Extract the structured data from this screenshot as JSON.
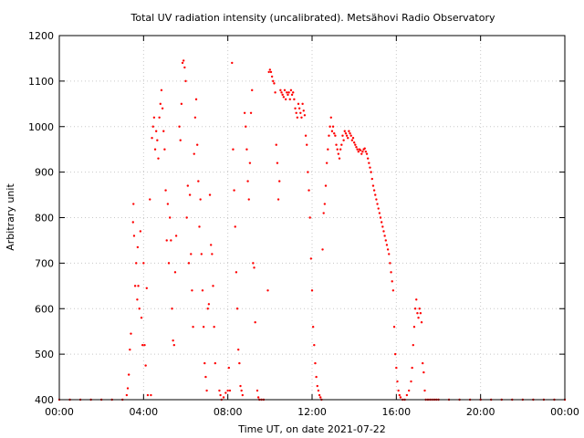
{
  "chart_data": {
    "type": "scatter",
    "title": "Total UV radiation intensity (uncalibrated). Metsähovi Radio Observatory",
    "xlabel": "Time UT, on date 2021-07-22",
    "ylabel": "Arbitrary unit",
    "xlim": [
      0,
      24
    ],
    "ylim": [
      400,
      1200
    ],
    "x_ticks": [
      {
        "value": 0,
        "label": "00:00"
      },
      {
        "value": 4,
        "label": "04:00"
      },
      {
        "value": 8,
        "label": "08:00"
      },
      {
        "value": 12,
        "label": "12:00"
      },
      {
        "value": 16,
        "label": "16:00"
      },
      {
        "value": 20,
        "label": "20:00"
      },
      {
        "value": 24,
        "label": "00:00"
      }
    ],
    "y_ticks": [
      400,
      500,
      600,
      700,
      800,
      900,
      1000,
      1100,
      1200
    ],
    "grid": true,
    "grid_style": "dotted",
    "legend": "none",
    "series": [
      {
        "color": "#ff0000",
        "points": [
          [
            0.0,
            400
          ],
          [
            0.5,
            400
          ],
          [
            1.0,
            400
          ],
          [
            1.5,
            400
          ],
          [
            2.0,
            400
          ],
          [
            2.5,
            400
          ],
          [
            3.0,
            400
          ],
          [
            3.2,
            410
          ],
          [
            3.25,
            425
          ],
          [
            3.3,
            455
          ],
          [
            3.35,
            510
          ],
          [
            3.4,
            545
          ],
          [
            3.5,
            790
          ],
          [
            3.52,
            830
          ],
          [
            3.55,
            760
          ],
          [
            3.6,
            650
          ],
          [
            3.65,
            700
          ],
          [
            3.7,
            620
          ],
          [
            3.72,
            735
          ],
          [
            3.75,
            650
          ],
          [
            3.8,
            600
          ],
          [
            3.85,
            770
          ],
          [
            3.9,
            580
          ],
          [
            3.95,
            520
          ],
          [
            4.0,
            700
          ],
          [
            4.05,
            520
          ],
          [
            4.1,
            475
          ],
          [
            4.15,
            645
          ],
          [
            4.2,
            410
          ],
          [
            4.3,
            840
          ],
          [
            4.35,
            410
          ],
          [
            4.4,
            975
          ],
          [
            4.45,
            1000
          ],
          [
            4.5,
            1020
          ],
          [
            4.55,
            950
          ],
          [
            4.6,
            990
          ],
          [
            4.65,
            970
          ],
          [
            4.7,
            930
          ],
          [
            4.75,
            1020
          ],
          [
            4.8,
            1050
          ],
          [
            4.85,
            1080
          ],
          [
            4.9,
            1040
          ],
          [
            4.95,
            990
          ],
          [
            5.0,
            950
          ],
          [
            5.05,
            860
          ],
          [
            5.1,
            750
          ],
          [
            5.15,
            830
          ],
          [
            5.2,
            700
          ],
          [
            5.25,
            800
          ],
          [
            5.3,
            750
          ],
          [
            5.35,
            600
          ],
          [
            5.4,
            530
          ],
          [
            5.45,
            520
          ],
          [
            5.5,
            680
          ],
          [
            5.55,
            760
          ],
          [
            5.7,
            1000
          ],
          [
            5.75,
            970
          ],
          [
            5.8,
            1050
          ],
          [
            5.85,
            1140
          ],
          [
            5.9,
            1145
          ],
          [
            5.95,
            1130
          ],
          [
            6.0,
            1100
          ],
          [
            6.05,
            800
          ],
          [
            6.1,
            870
          ],
          [
            6.15,
            700
          ],
          [
            6.2,
            850
          ],
          [
            6.25,
            720
          ],
          [
            6.3,
            640
          ],
          [
            6.35,
            560
          ],
          [
            6.4,
            940
          ],
          [
            6.45,
            1020
          ],
          [
            6.5,
            1060
          ],
          [
            6.55,
            960
          ],
          [
            6.6,
            880
          ],
          [
            6.65,
            780
          ],
          [
            6.7,
            840
          ],
          [
            6.75,
            720
          ],
          [
            6.8,
            640
          ],
          [
            6.85,
            560
          ],
          [
            6.9,
            480
          ],
          [
            6.95,
            450
          ],
          [
            7.0,
            420
          ],
          [
            7.05,
            600
          ],
          [
            7.1,
            610
          ],
          [
            7.15,
            850
          ],
          [
            7.2,
            740
          ],
          [
            7.25,
            720
          ],
          [
            7.3,
            650
          ],
          [
            7.35,
            560
          ],
          [
            7.4,
            480
          ],
          [
            7.6,
            420
          ],
          [
            7.65,
            410
          ],
          [
            7.7,
            400
          ],
          [
            7.8,
            405
          ],
          [
            7.9,
            415
          ],
          [
            8.0,
            420
          ],
          [
            8.05,
            470
          ],
          [
            8.1,
            420
          ],
          [
            8.2,
            1140
          ],
          [
            8.25,
            950
          ],
          [
            8.3,
            860
          ],
          [
            8.35,
            780
          ],
          [
            8.4,
            680
          ],
          [
            8.45,
            600
          ],
          [
            8.5,
            510
          ],
          [
            8.55,
            480
          ],
          [
            8.6,
            430
          ],
          [
            8.65,
            420
          ],
          [
            8.7,
            410
          ],
          [
            8.8,
            1030
          ],
          [
            8.85,
            1000
          ],
          [
            8.9,
            950
          ],
          [
            8.95,
            880
          ],
          [
            9.0,
            840
          ],
          [
            9.05,
            920
          ],
          [
            9.1,
            1030
          ],
          [
            9.15,
            1080
          ],
          [
            9.2,
            700
          ],
          [
            9.25,
            690
          ],
          [
            9.3,
            570
          ],
          [
            9.4,
            420
          ],
          [
            9.45,
            405
          ],
          [
            9.5,
            400
          ],
          [
            9.6,
            400
          ],
          [
            9.7,
            400
          ],
          [
            9.9,
            640
          ],
          [
            9.95,
            1120
          ],
          [
            10.0,
            1125
          ],
          [
            10.05,
            1120
          ],
          [
            10.1,
            1110
          ],
          [
            10.15,
            1100
          ],
          [
            10.2,
            1095
          ],
          [
            10.25,
            1075
          ],
          [
            10.3,
            960
          ],
          [
            10.35,
            920
          ],
          [
            10.4,
            840
          ],
          [
            10.45,
            880
          ],
          [
            10.5,
            1080
          ],
          [
            10.55,
            1075
          ],
          [
            10.6,
            1070
          ],
          [
            10.65,
            1065
          ],
          [
            10.7,
            1080
          ],
          [
            10.75,
            1060
          ],
          [
            10.8,
            1075
          ],
          [
            10.85,
            1070
          ],
          [
            10.9,
            1075
          ],
          [
            10.95,
            1060
          ],
          [
            11.0,
            1080
          ],
          [
            11.05,
            1070
          ],
          [
            11.1,
            1075
          ],
          [
            11.15,
            1060
          ],
          [
            11.2,
            1040
          ],
          [
            11.25,
            1030
          ],
          [
            11.3,
            1020
          ],
          [
            11.35,
            1050
          ],
          [
            11.4,
            1040
          ],
          [
            11.45,
            1030
          ],
          [
            11.5,
            1020
          ],
          [
            11.55,
            1050
          ],
          [
            11.6,
            1035
          ],
          [
            11.65,
            1025
          ],
          [
            11.7,
            980
          ],
          [
            11.75,
            960
          ],
          [
            11.8,
            900
          ],
          [
            11.85,
            860
          ],
          [
            11.9,
            800
          ],
          [
            11.95,
            710
          ],
          [
            12.0,
            640
          ],
          [
            12.05,
            560
          ],
          [
            12.1,
            520
          ],
          [
            12.15,
            480
          ],
          [
            12.2,
            450
          ],
          [
            12.25,
            430
          ],
          [
            12.3,
            420
          ],
          [
            12.35,
            410
          ],
          [
            12.4,
            405
          ],
          [
            12.45,
            400
          ],
          [
            12.5,
            730
          ],
          [
            12.55,
            810
          ],
          [
            12.6,
            830
          ],
          [
            12.65,
            870
          ],
          [
            12.7,
            920
          ],
          [
            12.75,
            950
          ],
          [
            12.8,
            980
          ],
          [
            12.85,
            1000
          ],
          [
            12.9,
            1020
          ],
          [
            12.95,
            990
          ],
          [
            13.0,
            1000
          ],
          [
            13.05,
            985
          ],
          [
            13.1,
            980
          ],
          [
            13.15,
            960
          ],
          [
            13.2,
            950
          ],
          [
            13.25,
            940
          ],
          [
            13.3,
            930
          ],
          [
            13.35,
            950
          ],
          [
            13.4,
            960
          ],
          [
            13.45,
            980
          ],
          [
            13.5,
            970
          ],
          [
            13.55,
            990
          ],
          [
            13.6,
            985
          ],
          [
            13.65,
            980
          ],
          [
            13.7,
            975
          ],
          [
            13.75,
            990
          ],
          [
            13.8,
            985
          ],
          [
            13.85,
            980
          ],
          [
            13.9,
            970
          ],
          [
            13.95,
            975
          ],
          [
            14.0,
            965
          ],
          [
            14.05,
            960
          ],
          [
            14.1,
            955
          ],
          [
            14.15,
            950
          ],
          [
            14.2,
            945
          ],
          [
            14.25,
            950
          ],
          [
            14.3,
            948
          ],
          [
            14.35,
            940
          ],
          [
            14.4,
            945
          ],
          [
            14.45,
            950
          ],
          [
            14.5,
            952
          ],
          [
            14.55,
            945
          ],
          [
            14.6,
            940
          ],
          [
            14.65,
            930
          ],
          [
            14.7,
            920
          ],
          [
            14.75,
            910
          ],
          [
            14.8,
            900
          ],
          [
            14.85,
            885
          ],
          [
            14.9,
            870
          ],
          [
            14.95,
            860
          ],
          [
            15.0,
            850
          ],
          [
            15.05,
            840
          ],
          [
            15.1,
            830
          ],
          [
            15.15,
            820
          ],
          [
            15.2,
            810
          ],
          [
            15.25,
            800
          ],
          [
            15.3,
            790
          ],
          [
            15.35,
            780
          ],
          [
            15.4,
            770
          ],
          [
            15.45,
            760
          ],
          [
            15.5,
            750
          ],
          [
            15.55,
            740
          ],
          [
            15.6,
            730
          ],
          [
            15.65,
            720
          ],
          [
            15.7,
            700
          ],
          [
            15.75,
            680
          ],
          [
            15.8,
            660
          ],
          [
            15.85,
            640
          ],
          [
            15.9,
            560
          ],
          [
            15.95,
            500
          ],
          [
            16.0,
            470
          ],
          [
            16.05,
            440
          ],
          [
            16.1,
            420
          ],
          [
            16.15,
            410
          ],
          [
            16.2,
            405
          ],
          [
            16.3,
            400
          ],
          [
            16.4,
            400
          ],
          [
            16.5,
            410
          ],
          [
            16.6,
            420
          ],
          [
            16.7,
            440
          ],
          [
            16.75,
            470
          ],
          [
            16.8,
            520
          ],
          [
            16.85,
            560
          ],
          [
            16.9,
            600
          ],
          [
            16.95,
            620
          ],
          [
            17.0,
            590
          ],
          [
            17.05,
            580
          ],
          [
            17.1,
            600
          ],
          [
            17.15,
            590
          ],
          [
            17.2,
            570
          ],
          [
            17.25,
            480
          ],
          [
            17.3,
            460
          ],
          [
            17.35,
            420
          ],
          [
            17.4,
            400
          ],
          [
            17.5,
            400
          ],
          [
            17.6,
            400
          ],
          [
            17.7,
            400
          ],
          [
            17.8,
            400
          ],
          [
            17.9,
            400
          ],
          [
            18.0,
            400
          ],
          [
            18.5,
            400
          ],
          [
            19.0,
            400
          ],
          [
            19.5,
            400
          ],
          [
            20.0,
            400
          ],
          [
            20.5,
            400
          ],
          [
            21.0,
            400
          ],
          [
            21.5,
            400
          ],
          [
            22.0,
            400
          ],
          [
            22.5,
            400
          ],
          [
            23.0,
            400
          ],
          [
            23.5,
            400
          ],
          [
            24.0,
            400
          ]
        ]
      }
    ]
  }
}
